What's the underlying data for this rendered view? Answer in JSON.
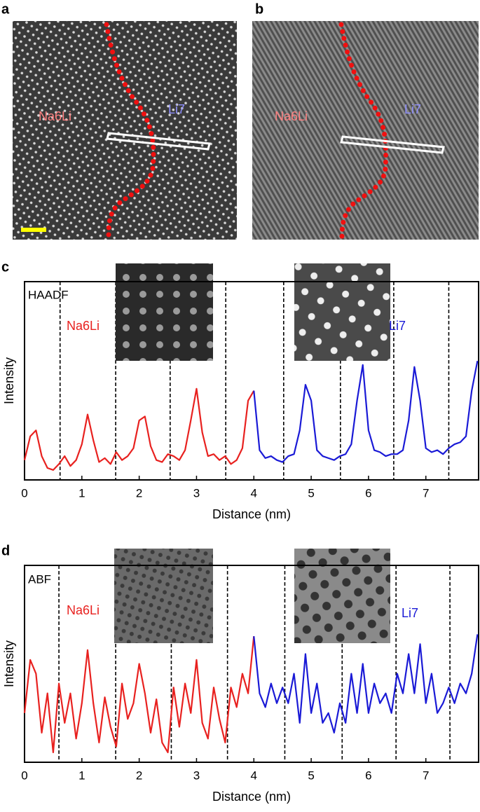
{
  "panels": {
    "a": {
      "label": "a",
      "left_label": "Na6Li",
      "right_label": "Li7"
    },
    "b": {
      "label": "b",
      "left_label": "Na6Li",
      "right_label": "Li7"
    }
  },
  "chart_data": [
    {
      "type": "line",
      "label": "c",
      "annotation": "HAADF",
      "x_label": "Distance (nm)",
      "y_label": "Intensity",
      "xlim": [
        0,
        7.92
      ],
      "xticks": [
        0,
        1,
        2,
        3,
        4,
        5,
        6,
        7
      ],
      "ylim": [
        0,
        1
      ],
      "dashed_lines": [
        0.62,
        1.59,
        2.54,
        3.51,
        4.52,
        5.51,
        6.44,
        7.4
      ],
      "series": [
        {
          "name": "Na6Li",
          "color": "#e8211f",
          "x": [
            0,
            0.1,
            0.2,
            0.3,
            0.4,
            0.5,
            0.6,
            0.7,
            0.8,
            0.9,
            1,
            1.1,
            1.2,
            1.3,
            1.4,
            1.5,
            1.6,
            1.7,
            1.8,
            1.9,
            2,
            2.1,
            2.2,
            2.3,
            2.4,
            2.5,
            2.6,
            2.7,
            2.8,
            2.9,
            3,
            3.1,
            3.2,
            3.3,
            3.4,
            3.5,
            3.6,
            3.7,
            3.8,
            3.9,
            4
          ],
          "values": [
            0.1,
            0.22,
            0.25,
            0.12,
            0.06,
            0.05,
            0.08,
            0.12,
            0.07,
            0.1,
            0.18,
            0.33,
            0.2,
            0.09,
            0.11,
            0.08,
            0.14,
            0.1,
            0.12,
            0.16,
            0.3,
            0.32,
            0.17,
            0.1,
            0.09,
            0.13,
            0.12,
            0.1,
            0.15,
            0.3,
            0.46,
            0.24,
            0.12,
            0.13,
            0.1,
            0.12,
            0.08,
            0.1,
            0.16,
            0.4,
            0.45
          ]
        },
        {
          "name": "Li7",
          "color": "#1a1ad6",
          "x": [
            4,
            4.1,
            4.2,
            4.3,
            4.4,
            4.5,
            4.6,
            4.7,
            4.8,
            4.9,
            5,
            5.1,
            5.2,
            5.3,
            5.4,
            5.5,
            5.6,
            5.7,
            5.8,
            5.9,
            6,
            6.1,
            6.2,
            6.3,
            6.4,
            6.5,
            6.6,
            6.7,
            6.8,
            6.9,
            7,
            7.1,
            7.2,
            7.3,
            7.4,
            7.5,
            7.6,
            7.7,
            7.8,
            7.9
          ],
          "values": [
            0.45,
            0.15,
            0.11,
            0.12,
            0.1,
            0.09,
            0.12,
            0.13,
            0.25,
            0.48,
            0.4,
            0.15,
            0.12,
            0.11,
            0.1,
            0.12,
            0.13,
            0.18,
            0.4,
            0.58,
            0.25,
            0.15,
            0.14,
            0.12,
            0.13,
            0.13,
            0.15,
            0.3,
            0.57,
            0.4,
            0.16,
            0.14,
            0.15,
            0.13,
            0.16,
            0.18,
            0.19,
            0.22,
            0.45,
            0.6
          ]
        }
      ]
    },
    {
      "type": "line",
      "label": "d",
      "annotation": "ABF",
      "x_label": "Distance (nm)",
      "y_label": "Intensity",
      "xlim": [
        0,
        7.92
      ],
      "xticks": [
        0,
        1,
        2,
        3,
        4,
        5,
        6,
        7
      ],
      "ylim": [
        0,
        1
      ],
      "dashed_lines": [
        0.6,
        1.59,
        2.56,
        3.54,
        4.54,
        5.54,
        6.48,
        7.42
      ],
      "series": [
        {
          "name": "Na6Li",
          "color": "#e8211f",
          "x": [
            0,
            0.1,
            0.2,
            0.3,
            0.4,
            0.5,
            0.6,
            0.7,
            0.8,
            0.9,
            1,
            1.1,
            1.2,
            1.3,
            1.4,
            1.5,
            1.6,
            1.7,
            1.8,
            1.9,
            2,
            2.1,
            2.2,
            2.3,
            2.4,
            2.5,
            2.6,
            2.7,
            2.8,
            2.9,
            3,
            3.1,
            3.2,
            3.3,
            3.4,
            3.5,
            3.6,
            3.7,
            3.8,
            3.9,
            4
          ],
          "values": [
            0.25,
            0.52,
            0.45,
            0.15,
            0.35,
            0.05,
            0.4,
            0.2,
            0.35,
            0.12,
            0.3,
            0.57,
            0.3,
            0.1,
            0.33,
            0.18,
            0.08,
            0.4,
            0.22,
            0.3,
            0.5,
            0.35,
            0.15,
            0.32,
            0.1,
            0.05,
            0.38,
            0.18,
            0.4,
            0.25,
            0.52,
            0.2,
            0.12,
            0.38,
            0.22,
            0.1,
            0.38,
            0.28,
            0.45,
            0.35,
            0.64
          ]
        },
        {
          "name": "Li7",
          "color": "#1a1ad6",
          "x": [
            4,
            4.1,
            4.2,
            4.3,
            4.4,
            4.5,
            4.6,
            4.7,
            4.8,
            4.9,
            5,
            5.1,
            5.2,
            5.3,
            5.4,
            5.5,
            5.6,
            5.7,
            5.8,
            5.9,
            6,
            6.1,
            6.2,
            6.3,
            6.4,
            6.5,
            6.6,
            6.7,
            6.8,
            6.9,
            7,
            7.1,
            7.2,
            7.3,
            7.4,
            7.5,
            7.6,
            7.7,
            7.8,
            7.9
          ],
          "values": [
            0.64,
            0.35,
            0.28,
            0.4,
            0.3,
            0.38,
            0.3,
            0.45,
            0.2,
            0.55,
            0.25,
            0.4,
            0.2,
            0.25,
            0.15,
            0.3,
            0.2,
            0.45,
            0.25,
            0.5,
            0.25,
            0.4,
            0.3,
            0.35,
            0.25,
            0.45,
            0.35,
            0.55,
            0.35,
            0.6,
            0.3,
            0.45,
            0.25,
            0.3,
            0.38,
            0.3,
            0.4,
            0.35,
            0.45,
            0.65
          ]
        }
      ]
    }
  ]
}
